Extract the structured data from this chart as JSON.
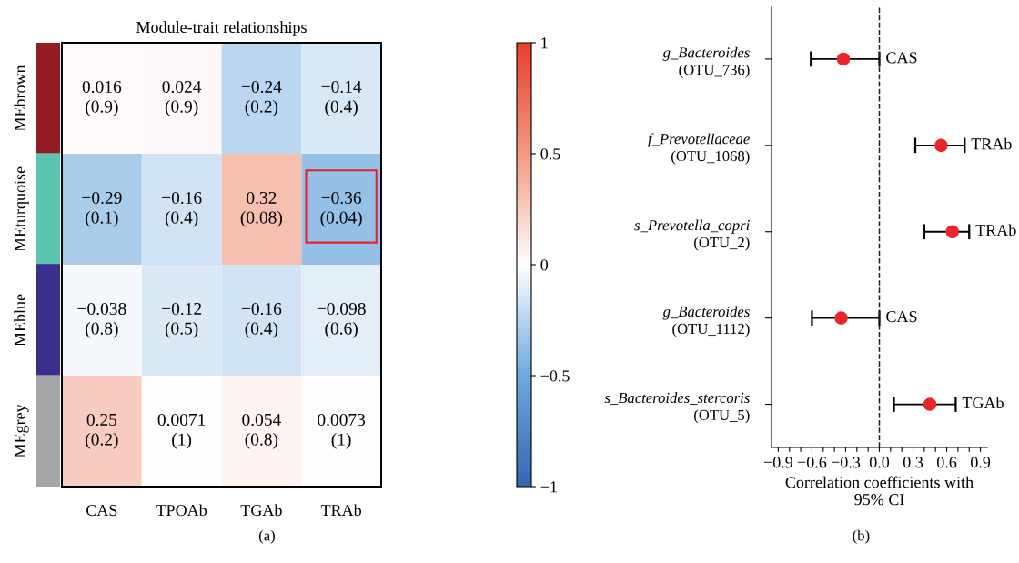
{
  "chart_data": [
    {
      "type": "heatmap",
      "title": "Module-trait relationships",
      "categories": [
        "CAS",
        "TPOAb",
        "TGAb",
        "TRAb"
      ],
      "y_categories": [
        "MEbrown",
        "MEturquoise",
        "MEblue",
        "MEgrey"
      ],
      "cells": [
        [
          0.016,
          0.024,
          -0.24,
          -0.14
        ],
        [
          -0.29,
          -0.16,
          0.32,
          -0.36
        ],
        [
          -0.038,
          -0.12,
          -0.16,
          -0.098
        ],
        [
          0.25,
          0.0071,
          0.054,
          0.0073
        ]
      ],
      "cell_labels": [
        [
          "0.016\n(0.9)",
          "0.024\n(0.9)",
          "−0.24\n(0.2)",
          "−0.14\n(0.4)"
        ],
        [
          "−0.29\n(0.1)",
          "−0.16\n(0.4)",
          "0.32\n(0.08)",
          "−0.36\n(0.04)"
        ],
        [
          "−0.038\n(0.8)",
          "−0.12\n(0.5)",
          "−0.16\n(0.4)",
          "−0.098\n(0.6)"
        ],
        [
          "0.25\n(0.2)",
          "0.0071\n(1)",
          "0.054\n(0.8)",
          "0.0073\n(1)"
        ]
      ],
      "clim": [
        -1,
        1
      ],
      "cticks": [
        {
          "value": -1,
          "label": "−1"
        },
        {
          "value": -0.5,
          "label": "−0.5"
        },
        0,
        0.5,
        1
      ],
      "annotations": [
        "(a)"
      ]
    },
    {
      "type": "scatter",
      "categories": [
        "g_Bacteroides\n(OTU_736)",
        "f_Prevotellaceae\n(OTU_1068)",
        "s_Prevotella_copri\n(OTU_2)",
        "g_Bacteroides\n(OTU_1112)",
        "s_Bacteroides_stercoris\n(OTU_5)"
      ],
      "orientation": "horizontal",
      "series": [
        {
          "color": "#e8262a",
          "values": [
            -0.32,
            0.55,
            0.65,
            -0.34,
            0.45
          ],
          "errors": [
            [
              -0.61,
              0.0
            ],
            [
              0.32,
              0.76
            ],
            [
              0.4,
              0.8
            ],
            [
              -0.6,
              0.0
            ],
            [
              0.13,
              0.68
            ]
          ]
        }
      ],
      "marker": "circle",
      "xlabel": "Correlation coefficients with\n95% CI",
      "xlim": [
        -0.96,
        0.96
      ],
      "xticks": [
        {
          "value": -0.9,
          "label": "−0.9"
        },
        {
          "value": -0.8,
          "label": null
        },
        {
          "value": -0.7,
          "label": null
        },
        {
          "value": -0.6,
          "label": "−0.6"
        },
        {
          "value": -0.5,
          "label": null
        },
        {
          "value": -0.4,
          "label": null
        },
        {
          "value": -0.3,
          "label": "−0.3"
        },
        {
          "value": -0.2,
          "label": null
        },
        {
          "value": -0.1,
          "label": null
        },
        {
          "value": 0.0,
          "label": "0.0"
        },
        {
          "value": 0.1,
          "label": null
        },
        {
          "value": 0.2,
          "label": null
        },
        {
          "value": 0.3,
          "label": "0.3"
        },
        {
          "value": 0.4,
          "label": null
        },
        {
          "value": 0.5,
          "label": null
        },
        {
          "value": 0.6,
          "label": "0.6"
        },
        {
          "value": 0.7,
          "label": null
        },
        {
          "value": 0.8,
          "label": null
        },
        {
          "value": 0.9,
          "label": "0.9"
        }
      ],
      "ref_lines": [
        {
          "axis": "x",
          "value": 0.0,
          "line_style": "dashed",
          "color": "#222222"
        }
      ],
      "annotations": [
        "CAS",
        "TRAb",
        "TRAb",
        "CAS",
        "TGAb",
        "(b)"
      ]
    }
  ]
}
